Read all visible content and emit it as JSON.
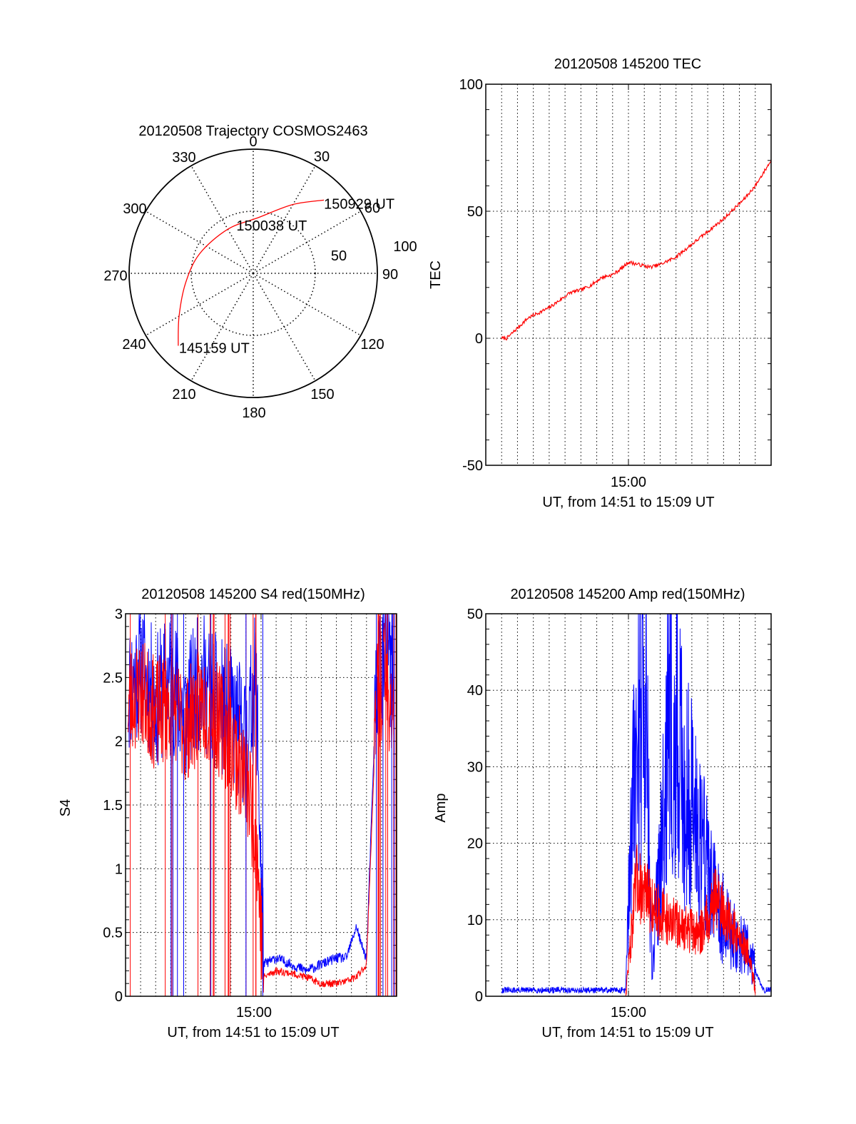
{
  "figure": {
    "time_axis_label": "15:00",
    "time_axis_caption": "UT, from 14:51 to 15:09 UT"
  },
  "chart_data": [
    {
      "type": "polar",
      "title": "20120508 Trajectory COSMOS2463",
      "azimuth_labels": [
        "0",
        "30",
        "60",
        "90",
        "120",
        "150",
        "180",
        "210",
        "240",
        "270",
        "300",
        "330"
      ],
      "radial_labels": [
        "50",
        "100"
      ],
      "r_range": [
        0,
        100
      ],
      "series": [
        {
          "color": "#ff0000",
          "points_az_r": [
            [
              226,
              84
            ],
            [
              240,
              69
            ],
            [
              262,
              55
            ],
            [
              290,
              46
            ],
            [
              330,
              41
            ],
            [
              5,
              45
            ],
            [
              30,
              64
            ],
            [
              44,
              82
            ]
          ]
        }
      ],
      "annotations": [
        {
          "text": "150929 UT",
          "at_az_r": [
            44,
            82
          ]
        },
        {
          "text": "150038 UT",
          "at_az_r": [
            330,
            41
          ]
        },
        {
          "text": "145159 UT",
          "at_az_r": [
            226,
            84
          ]
        }
      ]
    },
    {
      "type": "line",
      "title": "20120508 145200 TEC",
      "ylabel": "TEC",
      "xlabel": "UT, from 14:51 to 15:09 UT",
      "xlim": [
        "14:51:00",
        "15:09:00"
      ],
      "ylim": [
        -50,
        100
      ],
      "yticks": [
        -50,
        0,
        50,
        100
      ],
      "grid": true,
      "series": [
        {
          "color": "#ff0000",
          "x": [
            "14:52:00",
            "14:52:20",
            "14:53:00",
            "14:53:40",
            "14:54:20",
            "14:55:00",
            "14:55:40",
            "14:56:20",
            "14:57:00",
            "14:57:40",
            "14:58:20",
            "14:59:00",
            "14:59:40",
            "15:00:00",
            "15:00:40",
            "15:01:20",
            "15:02:00",
            "15:03:00",
            "15:04:00",
            "15:05:00",
            "15:06:00",
            "15:06:40",
            "15:07:20",
            "15:08:00",
            "15:08:30",
            "15:09:00"
          ],
          "y": [
            0,
            0,
            4,
            8,
            10,
            12,
            15,
            18,
            19,
            21,
            24,
            25,
            28,
            30,
            29,
            28,
            29,
            32,
            37,
            42,
            47,
            51,
            55,
            60,
            65,
            70
          ]
        }
      ]
    },
    {
      "type": "line",
      "title": "20120508 145200 S4 red(150MHz)",
      "ylabel": "S4",
      "xlabel": "UT, from 14:51 to 15:09 UT",
      "xlim": [
        "14:51:00",
        "15:09:00"
      ],
      "ylim": [
        0,
        3
      ],
      "yticks": [
        "0",
        "0.5",
        "1",
        "1.5",
        "2",
        "2.5",
        "3"
      ],
      "grid": true,
      "series": [
        {
          "color": "#0000ff",
          "x": [
            "14:51:10",
            "14:52:00",
            "14:53:00",
            "14:54:00",
            "14:55:00",
            "14:56:00",
            "14:57:00",
            "14:58:00",
            "14:59:00",
            "14:59:40",
            "15:00:10",
            "15:01:00",
            "15:02:00",
            "15:03:00",
            "15:04:00",
            "15:05:00",
            "15:05:40",
            "15:06:20",
            "15:06:40",
            "15:07:00",
            "15:07:40",
            "15:08:10",
            "15:08:50"
          ],
          "y": [
            2.4,
            2.6,
            2.3,
            2.5,
            2.2,
            2.5,
            2.3,
            2.2,
            2.0,
            2.5,
            0.25,
            0.3,
            0.25,
            0.2,
            0.25,
            0.3,
            0.3,
            0.55,
            0.4,
            0.3,
            2.5,
            2.7,
            2.5
          ]
        },
        {
          "color": "#ff0000",
          "x": [
            "14:51:10",
            "14:52:00",
            "14:53:00",
            "14:54:00",
            "14:55:00",
            "14:56:00",
            "14:57:00",
            "14:58:00",
            "14:59:00",
            "14:59:40",
            "15:00:10",
            "15:01:00",
            "15:02:00",
            "15:03:00",
            "15:04:00",
            "15:05:00",
            "15:05:40",
            "15:06:20",
            "15:06:40",
            "15:07:00",
            "15:07:40",
            "15:08:10",
            "15:08:50"
          ],
          "y": [
            2.3,
            2.4,
            2.2,
            2.3,
            2.1,
            2.3,
            2.2,
            2.0,
            1.7,
            1.3,
            0.15,
            0.2,
            0.18,
            0.15,
            0.1,
            0.1,
            0.12,
            0.15,
            0.2,
            0.25,
            2.3,
            2.5,
            2.2
          ]
        }
      ]
    },
    {
      "type": "line",
      "title": "20120508 145200 Amp red(150MHz)",
      "ylabel": "Amp",
      "xlabel": "UT, from 14:51 to 15:09 UT",
      "xlim": [
        "14:51:00",
        "15:09:00"
      ],
      "ylim": [
        0,
        50
      ],
      "yticks": [
        0,
        10,
        20,
        30,
        40,
        50
      ],
      "grid": true,
      "series": [
        {
          "color": "#0000ff",
          "x": [
            "14:52:00",
            "14:54:00",
            "14:56:00",
            "14:58:00",
            "14:59:50",
            "15:00:10",
            "15:01:00",
            "15:01:30",
            "15:02:30",
            "15:03:30",
            "15:04:30",
            "15:05:30",
            "15:06:30",
            "15:07:30",
            "15:08:30",
            "15:09:00"
          ],
          "y": [
            0.8,
            0.8,
            0.8,
            0.8,
            0.8,
            22,
            46,
            2,
            38,
            28,
            22,
            12,
            8,
            6,
            0.8,
            0.8
          ]
        },
        {
          "color": "#ff0000",
          "x": [
            "14:59:50",
            "15:00:30",
            "15:01:30",
            "15:02:30",
            "15:03:30",
            "15:04:30",
            "15:05:30",
            "15:06:30",
            "15:07:30",
            "15:08:00"
          ],
          "y": [
            0.5,
            15,
            12,
            10,
            9,
            8,
            13,
            9,
            6,
            1
          ]
        }
      ]
    }
  ]
}
